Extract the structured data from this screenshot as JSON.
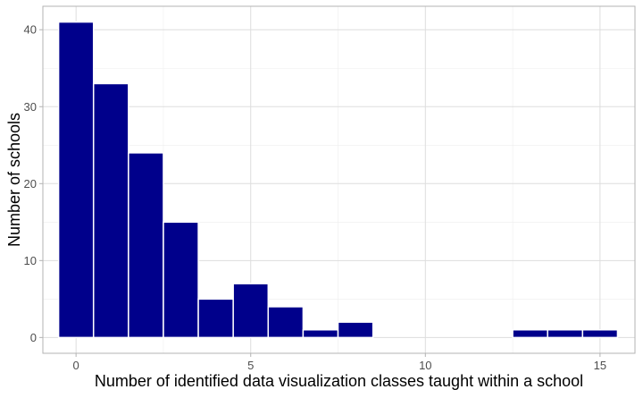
{
  "chart_data": {
    "type": "bar",
    "subtype": "histogram",
    "title": "",
    "xlabel": "Number of identified data visualization classes taught within a school",
    "ylabel": "Number of schools",
    "x": [
      0,
      1,
      2,
      3,
      4,
      5,
      6,
      7,
      8,
      13,
      14,
      15
    ],
    "values": [
      41,
      33,
      24,
      15,
      5,
      7,
      4,
      1,
      2,
      1,
      1,
      1
    ],
    "xlim": [
      -0.95,
      16.0
    ],
    "ylim": [
      -2.05,
      43.05
    ],
    "xticks": [
      0,
      5,
      10,
      15
    ],
    "yticks": [
      0,
      10,
      20,
      30,
      40
    ],
    "grid": true,
    "legend": "none",
    "colors": {
      "bar_fill": "#00008B",
      "bar_outline": "#ffffff",
      "panel_border": "#b3b3b3",
      "grid_major": "#dddddd",
      "grid_minor": "#eeeeee",
      "tick_label": "#4d4d4d"
    }
  }
}
